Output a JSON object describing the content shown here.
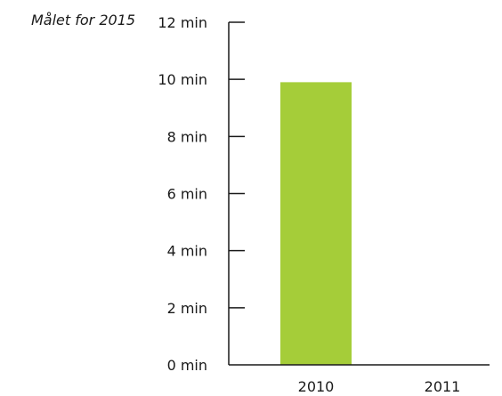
{
  "annotation": "Målet for 2015",
  "chart_data": {
    "type": "bar",
    "categories": [
      "2010",
      "2011"
    ],
    "values": [
      9.9,
      null
    ],
    "ylim": [
      0,
      12
    ],
    "y_ticks": [
      0,
      2,
      4,
      6,
      8,
      10,
      12
    ],
    "y_tick_labels": [
      "0 min",
      "2 min",
      "4 min",
      "6 min",
      "8 min",
      "10 min",
      "12 min"
    ],
    "title": "",
    "xlabel": "",
    "ylabel": "",
    "grid": false,
    "bar_color": "#a5cd39"
  }
}
